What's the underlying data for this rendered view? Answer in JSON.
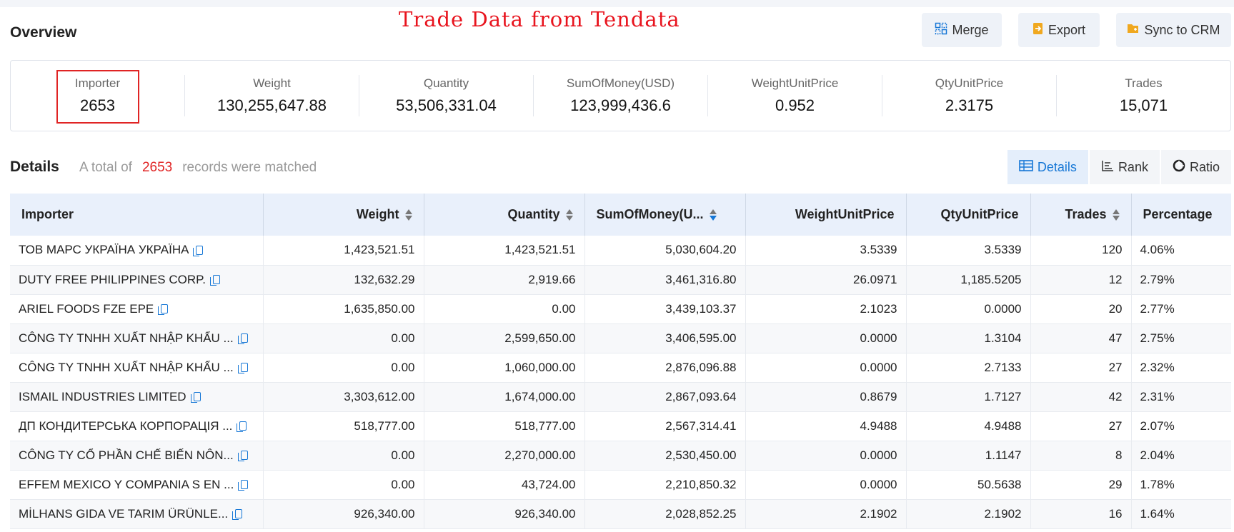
{
  "header": {
    "title": "Overview",
    "watermark": "Trade Data from Tendata",
    "buttons": [
      {
        "label": "Merge",
        "icon": "merge-icon"
      },
      {
        "label": "Export",
        "icon": "export-icon"
      },
      {
        "label": "Sync to CRM",
        "icon": "sync-crm-icon"
      }
    ]
  },
  "stats": [
    {
      "label": "Importer",
      "value": "2653"
    },
    {
      "label": "Weight",
      "value": "130,255,647.88"
    },
    {
      "label": "Quantity",
      "value": "53,506,331.04"
    },
    {
      "label": "SumOfMoney(USD)",
      "value": "123,999,436.6"
    },
    {
      "label": "WeightUnitPrice",
      "value": "0.952"
    },
    {
      "label": "QtyUnitPrice",
      "value": "2.3175"
    },
    {
      "label": "Trades",
      "value": "15,071"
    }
  ],
  "details": {
    "title": "Details",
    "prefix": "A total of",
    "count": "2653",
    "suffix": "records were matched",
    "tabs": [
      {
        "label": "Details",
        "icon": "table-icon",
        "active": true
      },
      {
        "label": "Rank",
        "icon": "rank-icon",
        "active": false
      },
      {
        "label": "Ratio",
        "icon": "pie-icon",
        "active": false
      }
    ]
  },
  "table": {
    "columns": [
      "Importer",
      "Weight",
      "Quantity",
      "SumOfMoney(U...",
      "WeightUnitPrice",
      "QtyUnitPrice",
      "Trades",
      "Percentage"
    ],
    "rows": [
      [
        "ТОВ МАРС УКРАЇНА УКРАЇНА",
        "1,423,521.51",
        "1,423,521.51",
        "5,030,604.20",
        "3.5339",
        "3.5339",
        "120",
        "4.06%"
      ],
      [
        "DUTY FREE PHILIPPINES CORP.",
        "132,632.29",
        "2,919.66",
        "3,461,316.80",
        "26.0971",
        "1,185.5205",
        "12",
        "2.79%"
      ],
      [
        "ARIEL FOODS FZE EPE",
        "1,635,850.00",
        "0.00",
        "3,439,103.37",
        "2.1023",
        "0.0000",
        "20",
        "2.77%"
      ],
      [
        "CÔNG TY TNHH XUẤT NHẬP KHẨU ...",
        "0.00",
        "2,599,650.00",
        "3,406,595.00",
        "0.0000",
        "1.3104",
        "47",
        "2.75%"
      ],
      [
        "CÔNG TY TNHH XUẤT NHẬP KHẨU ...",
        "0.00",
        "1,060,000.00",
        "2,876,096.88",
        "0.0000",
        "2.7133",
        "27",
        "2.32%"
      ],
      [
        "ISMAIL INDUSTRIES LIMITED",
        "3,303,612.00",
        "1,674,000.00",
        "2,867,093.64",
        "0.8679",
        "1.7127",
        "42",
        "2.31%"
      ],
      [
        "ДП КОНДИТЕРСЬКА КОРПОРАЦІЯ ...",
        "518,777.00",
        "518,777.00",
        "2,567,314.41",
        "4.9488",
        "4.9488",
        "27",
        "2.07%"
      ],
      [
        "CÔNG TY CỔ PHẦN CHẾ BIẾN NÔN...",
        "0.00",
        "2,270,000.00",
        "2,530,450.00",
        "0.0000",
        "1.1147",
        "8",
        "2.04%"
      ],
      [
        "EFFEM MEXICO Y COMPANIA S EN ...",
        "0.00",
        "43,724.00",
        "2,210,850.32",
        "0.0000",
        "50.5638",
        "29",
        "1.78%"
      ],
      [
        "MİLHANS GIDA VE TARIM ÜRÜNLE...",
        "926,340.00",
        "926,340.00",
        "2,028,852.25",
        "2.1902",
        "2.1902",
        "16",
        "1.64%"
      ]
    ]
  }
}
